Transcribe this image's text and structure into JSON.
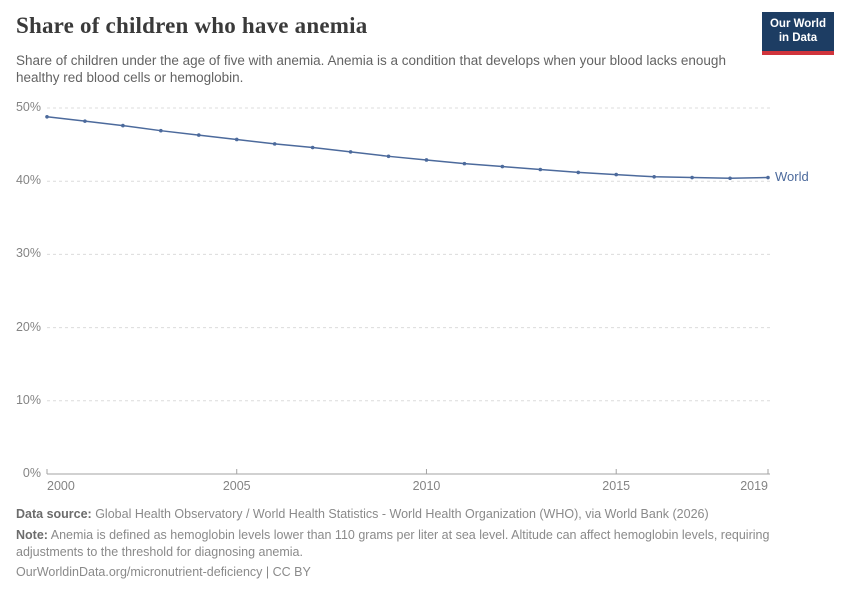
{
  "header": {
    "title": "Share of children who have anemia",
    "subtitle": "Share of children under the age of five with anemia. Anemia is a condition that develops when your blood lacks enough healthy red blood cells or hemoglobin.",
    "logo": {
      "line1": "Our World",
      "line2": "in Data",
      "bg_color": "#1d3d63",
      "accent_color": "#d0343c"
    }
  },
  "chart_data": {
    "type": "line",
    "title": "Share of children who have anemia",
    "xlabel": "",
    "ylabel": "",
    "x": [
      2000,
      2001,
      2002,
      2003,
      2004,
      2005,
      2006,
      2007,
      2008,
      2009,
      2010,
      2011,
      2012,
      2013,
      2014,
      2015,
      2016,
      2017,
      2018,
      2019
    ],
    "series": [
      {
        "name": "World",
        "color": "#4c6a9c",
        "values": [
          48.8,
          48.2,
          47.6,
          46.9,
          46.3,
          45.7,
          45.1,
          44.6,
          44.0,
          43.4,
          42.9,
          42.4,
          42.0,
          41.6,
          41.2,
          40.9,
          40.6,
          40.5,
          40.4,
          40.5
        ]
      }
    ],
    "xlim": [
      2000,
      2019
    ],
    "ylim": [
      0,
      50
    ],
    "yticks": [
      {
        "v": 0,
        "label": "0%"
      },
      {
        "v": 10,
        "label": "10%"
      },
      {
        "v": 20,
        "label": "20%"
      },
      {
        "v": 30,
        "label": "30%"
      },
      {
        "v": 40,
        "label": "40%"
      },
      {
        "v": 50,
        "label": "50%"
      }
    ],
    "xticks": [
      {
        "v": 2000,
        "label": "2000"
      },
      {
        "v": 2005,
        "label": "2005"
      },
      {
        "v": 2010,
        "label": "2010"
      },
      {
        "v": 2015,
        "label": "2015"
      },
      {
        "v": 2019,
        "label": "2019"
      }
    ],
    "grid": "horizontal-dashed",
    "legend": "end-of-line-label"
  },
  "footer": {
    "datasource_label": "Data source:",
    "datasource_text": " Global Health Observatory / World Health Statistics - World Health Organization (WHO), via World Bank (2026)",
    "note_label": "Note:",
    "note_text": " Anemia is defined as hemoglobin levels lower than 110 grams per liter at sea level. Altitude can affect hemoglobin levels, requiring adjustments to the threshold for diagnosing anemia.",
    "url": "OurWorldinData.org/micronutrient-deficiency",
    "separator": " | ",
    "license": "CC BY"
  }
}
